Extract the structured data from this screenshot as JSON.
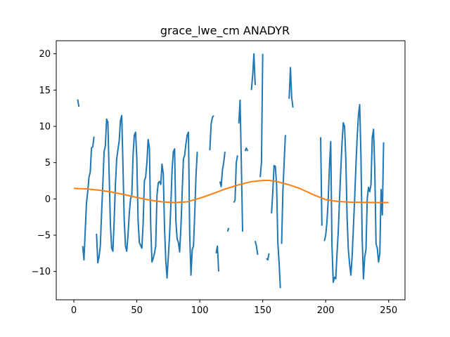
{
  "chart_data": {
    "type": "line",
    "title": "grace_lwe_cm ANADYR",
    "xlabel": "",
    "ylabel": "",
    "xlim": [
      -14,
      263
    ],
    "ylim": [
      -13.9,
      21.8
    ],
    "xticks": [
      0,
      50,
      100,
      150,
      200,
      250
    ],
    "yticks": [
      -10,
      -5,
      0,
      5,
      10,
      15,
      20
    ],
    "grid": false,
    "legend": "none",
    "series": [
      {
        "color": "#1f77b4",
        "segments": [
          [
            [
              3,
              13.7
            ],
            [
              4,
              12.7
            ]
          ],
          [
            [
              7,
              -6.5
            ],
            [
              8,
              -8.4
            ],
            [
              9,
              -4.5
            ],
            [
              10,
              -0.6
            ],
            [
              11,
              1.0
            ],
            [
              12,
              3.0
            ],
            [
              13,
              3.7
            ],
            [
              14,
              7.0
            ],
            [
              15,
              7.2
            ],
            [
              16,
              8.6
            ]
          ],
          [
            [
              18,
              -4.8
            ],
            [
              19,
              -8.8
            ],
            [
              20,
              -8.0
            ],
            [
              21,
              -6.5
            ],
            [
              22,
              -2.0
            ],
            [
              23,
              2.0
            ],
            [
              24,
              6.5
            ],
            [
              25,
              7.3
            ],
            [
              26,
              11.0
            ],
            [
              27,
              10.6
            ],
            [
              28,
              3.5
            ],
            [
              29,
              -3.5
            ],
            [
              30,
              -6.8
            ],
            [
              31,
              -7.2
            ],
            [
              32,
              -3.0
            ],
            [
              33,
              2.0
            ],
            [
              34,
              5.5
            ],
            [
              35,
              6.8
            ],
            [
              36,
              8.0
            ],
            [
              37,
              10.8
            ],
            [
              38,
              11.5
            ],
            [
              39,
              4.5
            ],
            [
              40,
              -3.0
            ],
            [
              41,
              -6.5
            ],
            [
              42,
              -7.2
            ],
            [
              43,
              -5.0
            ],
            [
              44,
              -2.0
            ],
            [
              45,
              0.0
            ],
            [
              46,
              0.5
            ],
            [
              47,
              6.0
            ],
            [
              48,
              8.8
            ],
            [
              49,
              9.2
            ],
            [
              50,
              5.5
            ],
            [
              51,
              -3.0
            ],
            [
              52,
              -6.0
            ],
            [
              53,
              -6.4
            ],
            [
              54,
              -6.8
            ],
            [
              55,
              -3.5
            ],
            [
              56,
              2.5
            ],
            [
              57,
              3.0
            ],
            [
              58,
              5.0
            ],
            [
              59,
              8.2
            ],
            [
              60,
              7.0
            ],
            [
              61,
              -3.5
            ],
            [
              62,
              -8.7
            ],
            [
              63,
              -8.2
            ],
            [
              64,
              -7.5
            ],
            [
              65,
              -6.5
            ],
            [
              66,
              0.5
            ],
            [
              67,
              2.2
            ],
            [
              68,
              2.4
            ],
            [
              69,
              2.0
            ],
            [
              70,
              4.8
            ],
            [
              71,
              3.5
            ],
            [
              72,
              -4.0
            ],
            [
              73,
              -8.5
            ],
            [
              74,
              -10.9
            ],
            [
              75,
              -8.0
            ],
            [
              76,
              -5.0
            ],
            [
              77,
              -1.0
            ],
            [
              78,
              4.0
            ],
            [
              79,
              6.5
            ],
            [
              80,
              6.9
            ],
            [
              81,
              -3.0
            ],
            [
              82,
              -5.5
            ],
            [
              83,
              -6.0
            ],
            [
              84,
              -7.3
            ],
            [
              85,
              -4.0
            ],
            [
              86,
              0.8
            ],
            [
              87,
              5.5
            ],
            [
              88,
              6.0
            ],
            [
              89,
              7.6
            ],
            [
              90,
              8.8
            ],
            [
              91,
              9.2
            ],
            [
              92,
              -5.0
            ],
            [
              93,
              -10.5
            ],
            [
              94,
              -7.0
            ],
            [
              95,
              -6.5
            ],
            [
              96,
              -2.0
            ],
            [
              97,
              3.2
            ],
            [
              98,
              6.5
            ]
          ],
          [
            [
              108,
              6.7
            ],
            [
              109,
              10.3
            ],
            [
              110,
              11.2
            ],
            [
              111,
              11.5
            ]
          ],
          [
            [
              113,
              -7.5
            ],
            [
              114,
              -6.5
            ],
            [
              115,
              -10.0
            ]
          ],
          [
            [
              116,
              2.4
            ],
            [
              117,
              1.7
            ],
            [
              118,
              4.0
            ],
            [
              119,
              5.0
            ],
            [
              120,
              6.5
            ]
          ],
          [
            [
              122,
              -4.5
            ],
            [
              123,
              -4.0
            ]
          ],
          [
            [
              127,
              -0.5
            ],
            [
              128,
              -0.2
            ],
            [
              129,
              5.0
            ],
            [
              130,
              6.0
            ]
          ],
          [
            [
              131,
              10.4
            ],
            [
              132,
              13.6
            ],
            [
              133,
              5.0
            ],
            [
              134,
              -4.5
            ]
          ],
          [
            [
              136,
              6.6
            ],
            [
              137,
              7.0
            ],
            [
              138,
              6.6
            ]
          ],
          [
            [
              141,
              15.0
            ],
            [
              142,
              17.0
            ],
            [
              143,
              20.0
            ],
            [
              144,
              15.7
            ]
          ],
          [
            [
              144,
              -5.8
            ],
            [
              145,
              -6.5
            ],
            [
              146,
              -7.7
            ]
          ],
          [
            [
              148,
              3.0
            ],
            [
              149,
              5.0
            ],
            [
              150,
              20.0
            ]
          ],
          [
            [
              153,
              -8.2
            ],
            [
              154,
              -8.4
            ],
            [
              155,
              -7.5
            ]
          ],
          [
            [
              157,
              -2.0
            ],
            [
              158,
              1.0
            ],
            [
              159,
              4.6
            ],
            [
              160,
              4.5
            ],
            [
              161,
              2.0
            ],
            [
              162,
              -6.0
            ],
            [
              163,
              -8.8
            ],
            [
              164,
              -12.3
            ]
          ],
          [
            [
              165,
              -6.2
            ],
            [
              166,
              1.0
            ],
            [
              167,
              5.0
            ],
            [
              168,
              8.8
            ]
          ],
          [
            [
              171,
              13.8
            ],
            [
              172,
              18.1
            ],
            [
              173,
              14.0
            ],
            [
              174,
              12.6
            ]
          ],
          [
            [
              196,
              8.5
            ],
            [
              197,
              -3.7
            ]
          ],
          [
            [
              199,
              -5.8
            ],
            [
              200,
              -5.0
            ],
            [
              201,
              -3.2
            ],
            [
              202,
              -0.2
            ],
            [
              203,
              4.5
            ],
            [
              204,
              7.9
            ],
            [
              205,
              -6.5
            ],
            [
              206,
              -11.5
            ],
            [
              207,
              -10.8
            ],
            [
              208,
              -11.0
            ],
            [
              209,
              -7.5
            ],
            [
              210,
              -4.5
            ],
            [
              211,
              0.0
            ],
            [
              212,
              4.0
            ],
            [
              213,
              7.8
            ],
            [
              214,
              10.5
            ],
            [
              215,
              10.0
            ],
            [
              216,
              5.5
            ],
            [
              217,
              -2.5
            ],
            [
              218,
              -7.0
            ],
            [
              219,
              -9.0
            ],
            [
              220,
              -10.5
            ],
            [
              221,
              -8.0
            ],
            [
              222,
              -4.0
            ],
            [
              223,
              0.0
            ],
            [
              224,
              4.5
            ],
            [
              225,
              8.5
            ],
            [
              226,
              11.5
            ],
            [
              227,
              13.0
            ],
            [
              228,
              6.0
            ],
            [
              229,
              -5.5
            ],
            [
              230,
              -11.0
            ],
            [
              231,
              -8.0
            ],
            [
              232,
              -7.0
            ],
            [
              233,
              0.0
            ],
            [
              234,
              1.6
            ],
            [
              235,
              1.0
            ],
            [
              236,
              2.0
            ],
            [
              237,
              8.5
            ],
            [
              238,
              9.6
            ],
            [
              239,
              4.0
            ],
            [
              240,
              -6.2
            ],
            [
              241,
              -6.8
            ],
            [
              242,
              -8.7
            ],
            [
              243,
              -7.5
            ],
            [
              244,
              1.3
            ],
            [
              245,
              -2.2
            ],
            [
              246,
              7.8
            ]
          ]
        ]
      },
      {
        "color": "#ff7f0e",
        "x": [
          0,
          10,
          20,
          30,
          40,
          50,
          60,
          70,
          80,
          90,
          100,
          110,
          120,
          130,
          140,
          150,
          155,
          160,
          170,
          180,
          190,
          200,
          210,
          220,
          230,
          240,
          250
        ],
        "y": [
          1.45,
          1.38,
          1.2,
          0.95,
          0.6,
          0.2,
          -0.15,
          -0.4,
          -0.5,
          -0.4,
          0.1,
          0.7,
          1.35,
          1.9,
          2.35,
          2.55,
          2.55,
          2.45,
          2.0,
          1.4,
          0.6,
          -0.1,
          -0.35,
          -0.45,
          -0.48,
          -0.5,
          -0.5
        ]
      }
    ]
  }
}
